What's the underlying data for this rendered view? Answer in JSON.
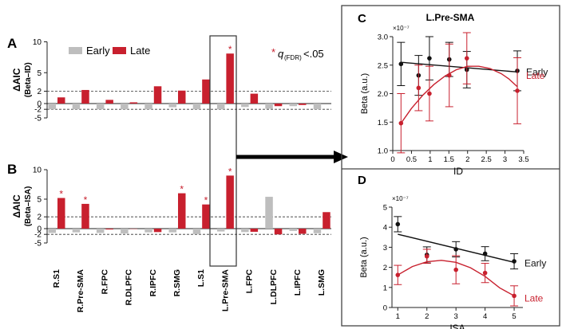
{
  "colors": {
    "early": "#bebebe",
    "late": "#c8202e",
    "axis": "#222222",
    "box": "#333333"
  },
  "panel_letters": {
    "a": "A",
    "b": "B",
    "c": "C",
    "d": "D"
  },
  "legend": {
    "early": "Early",
    "late": "Late"
  },
  "significance": {
    "star": "*",
    "q": "q",
    "sub": "(FDR)",
    "threshold": "<.05"
  },
  "chart_data": [
    {
      "id": "A",
      "type": "bar",
      "ylabel": "ΔAIC",
      "ylabel_sub": "(Beta–ID)",
      "yticks": [
        10,
        5,
        2,
        0,
        -2,
        -5
      ],
      "ylim": [
        -5,
        10
      ],
      "dashed_lines": [
        2,
        -2
      ],
      "categories": [
        "R.S1",
        "R.Pre-SMA",
        "R.FPC",
        "R.DLPFC",
        "R.IPFC",
        "R.SMG",
        "L.S1",
        "L.Pre-SMA",
        "L.FPC",
        "L.DLPFC",
        "L.IPFC",
        "L.SMG"
      ],
      "series": [
        {
          "name": "Early",
          "values": [
            -2.0,
            -2.0,
            -2.0,
            -2.0,
            -2.0,
            -1.3,
            -2.0,
            -2.0,
            -1.2,
            -1.8,
            -0.9,
            -2.0
          ]
        },
        {
          "name": "Late",
          "values": [
            1.0,
            2.2,
            0.6,
            0.2,
            2.8,
            2.1,
            3.9,
            8.1,
            1.6,
            -0.9,
            -0.5,
            0.0
          ]
        }
      ],
      "significant_late": [
        7
      ]
    },
    {
      "id": "B",
      "type": "bar",
      "ylabel": "ΔAIC",
      "ylabel_sub": "(Beta–ISA)",
      "yticks": [
        10,
        5,
        2,
        0,
        -2,
        -5
      ],
      "ylim": [
        -5,
        10
      ],
      "dashed_lines": [
        2,
        -2
      ],
      "categories": [
        "R.S1",
        "R.Pre-SMA",
        "R.FPC",
        "R.DLPFC",
        "R.IPFC",
        "R.SMG",
        "L.S1",
        "L.Pre-SMA",
        "L.FPC",
        "L.DLPFC",
        "L.IPFC",
        "L.SMG"
      ],
      "series": [
        {
          "name": "Early",
          "values": [
            -1.5,
            -1.3,
            -1.5,
            -1.7,
            -1.3,
            -1.3,
            -1.9,
            -1.0,
            -1.2,
            5.4,
            -0.8,
            -1.6
          ]
        },
        {
          "name": "Late",
          "values": [
            5.2,
            4.2,
            -0.3,
            -0.1,
            -1.2,
            6.0,
            4.1,
            9.0,
            -1.1,
            -2.0,
            -1.8,
            2.8
          ]
        }
      ],
      "significant_late": [
        0,
        1,
        5,
        6,
        7
      ]
    },
    {
      "id": "C",
      "type": "scatter",
      "title": "L.Pre-SMA",
      "xlabel": "ID",
      "ylabel": "Beta (a.u.)",
      "exponent": "×10⁻⁷",
      "xlim": [
        0,
        3.5
      ],
      "ylim": [
        1.0,
        3.0
      ],
      "xticks": [
        0,
        0.5,
        1,
        1.5,
        2,
        2.5,
        3,
        3.5
      ],
      "yticks": [
        1.0,
        1.5,
        2.0,
        2.5,
        3.0
      ],
      "series": [
        {
          "name": "Early",
          "x": [
            0.22,
            0.69,
            0.98,
            1.51,
            1.98,
            3.33
          ],
          "y": [
            2.52,
            2.32,
            2.62,
            2.6,
            2.42,
            2.4
          ],
          "err": [
            0.38,
            0.35,
            0.38,
            0.3,
            0.32,
            0.35
          ],
          "fit": "linear",
          "fit_line": [
            [
              0.22,
              2.55
            ],
            [
              3.33,
              2.38
            ]
          ]
        },
        {
          "name": "Late",
          "x": [
            0.22,
            0.69,
            0.98,
            1.51,
            1.98,
            3.33
          ],
          "y": [
            1.48,
            2.1,
            2.0,
            2.32,
            2.62,
            2.05
          ],
          "err": [
            0.52,
            0.4,
            0.48,
            0.55,
            0.45,
            0.58
          ],
          "fit": "quadratic",
          "fit_line": [
            [
              0.22,
              1.48
            ],
            [
              0.5,
              1.74
            ],
            [
              0.8,
              1.97
            ],
            [
              1.1,
              2.16
            ],
            [
              1.4,
              2.31
            ],
            [
              1.7,
              2.42
            ],
            [
              2.0,
              2.48
            ],
            [
              2.3,
              2.48
            ],
            [
              2.6,
              2.44
            ],
            [
              2.9,
              2.35
            ],
            [
              3.1,
              2.26
            ],
            [
              3.33,
              2.12
            ]
          ]
        }
      ]
    },
    {
      "id": "D",
      "type": "scatter",
      "xlabel": "ISA",
      "ylabel": "Beta (a.u.)",
      "exponent": "×10⁻⁷",
      "xlim": [
        0.8,
        5.3
      ],
      "ylim": [
        0,
        5
      ],
      "xticks": [
        1,
        2,
        3,
        4,
        5
      ],
      "yticks": [
        0,
        1,
        2,
        3,
        4,
        5
      ],
      "series": [
        {
          "name": "Early",
          "x": [
            1,
            2,
            3,
            4,
            5
          ],
          "y": [
            4.15,
            2.62,
            2.9,
            2.68,
            2.3
          ],
          "err": [
            0.38,
            0.4,
            0.38,
            0.35,
            0.38
          ],
          "fit": "linear",
          "fit_line": [
            [
              1,
              3.65
            ],
            [
              5,
              2.25
            ]
          ]
        },
        {
          "name": "Late",
          "x": [
            1,
            2,
            3,
            4,
            5
          ],
          "y": [
            1.62,
            2.55,
            1.88,
            1.72,
            0.58
          ],
          "err": [
            0.48,
            0.35,
            0.7,
            0.48,
            0.5
          ],
          "fit": "quadratic",
          "fit_line": [
            [
              1,
              1.62
            ],
            [
              1.5,
              2.04
            ],
            [
              2,
              2.28
            ],
            [
              2.5,
              2.35
            ],
            [
              3,
              2.25
            ],
            [
              3.5,
              1.98
            ],
            [
              4,
              1.55
            ],
            [
              4.5,
              0.98
            ],
            [
              5,
              0.58
            ]
          ]
        }
      ]
    }
  ]
}
